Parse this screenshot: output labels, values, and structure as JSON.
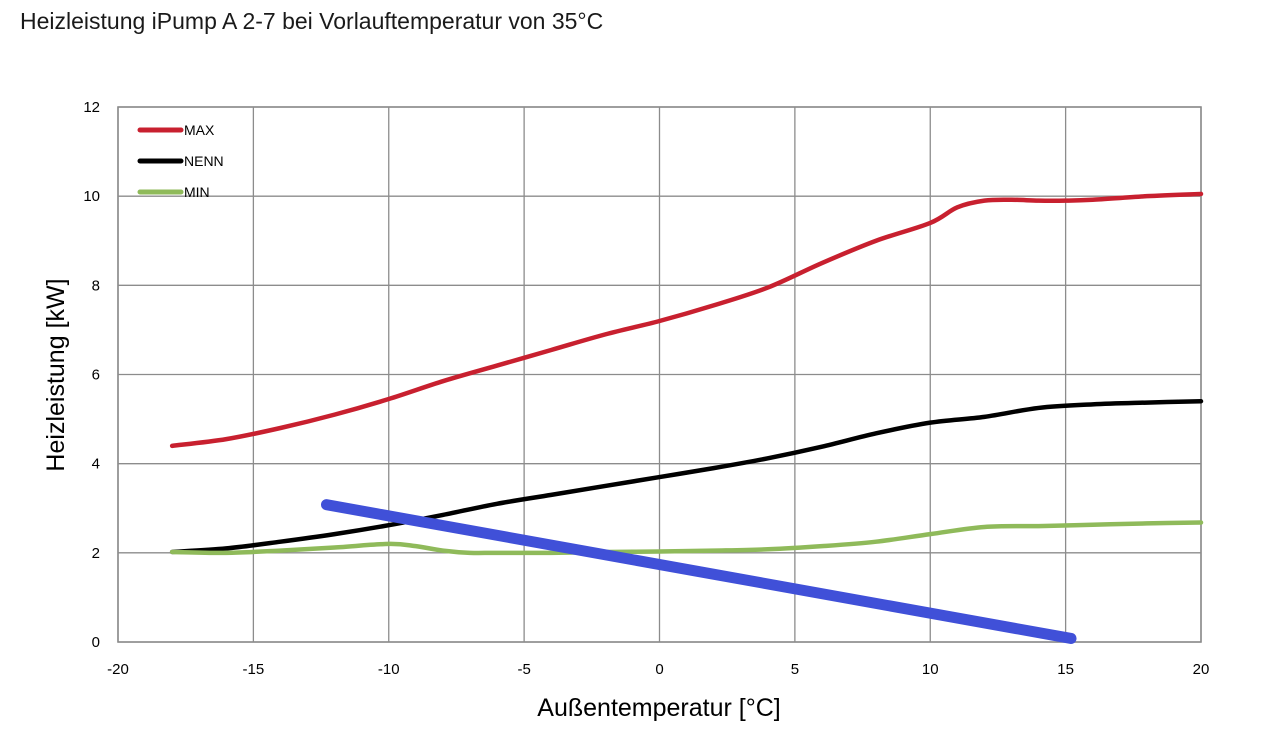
{
  "chart_data": {
    "type": "line",
    "title": "Heizleistung iPump A 2-7 bei Vorlauftemperatur von 35°C",
    "xlabel": "Außentemperatur [°C]",
    "ylabel": "Heizleistung [kW]",
    "xlim": [
      -20,
      20
    ],
    "ylim": [
      0,
      12
    ],
    "xticks": [
      -20,
      -15,
      -10,
      -5,
      0,
      5,
      10,
      15,
      20
    ],
    "yticks": [
      0,
      2,
      4,
      6,
      8,
      10,
      12
    ],
    "grid": true,
    "legend_position": "top-left",
    "series": [
      {
        "name": "MAX",
        "color": "#c8202f",
        "x": [
          -18,
          -16,
          -14,
          -12,
          -10,
          -8,
          -6,
          -4,
          -2,
          0,
          2,
          4,
          6,
          8,
          10,
          11,
          12,
          13,
          14,
          15,
          16,
          18,
          20
        ],
        "y": [
          4.4,
          4.55,
          4.8,
          5.1,
          5.45,
          5.85,
          6.2,
          6.55,
          6.9,
          7.2,
          7.55,
          7.95,
          8.5,
          9.0,
          9.4,
          9.75,
          9.9,
          9.92,
          9.9,
          9.9,
          9.92,
          10.0,
          10.05
        ]
      },
      {
        "name": "NENN",
        "color": "#000000",
        "x": [
          -18,
          -16,
          -14,
          -12,
          -10,
          -8,
          -6,
          -4,
          -2,
          0,
          2,
          4,
          6,
          8,
          10,
          12,
          14,
          16,
          18,
          20
        ],
        "y": [
          2.02,
          2.1,
          2.25,
          2.42,
          2.62,
          2.85,
          3.1,
          3.3,
          3.5,
          3.7,
          3.9,
          4.12,
          4.38,
          4.68,
          4.92,
          5.05,
          5.25,
          5.33,
          5.37,
          5.4
        ]
      },
      {
        "name": "MIN",
        "color": "#8fba5a",
        "x": [
          -18,
          -16,
          -14,
          -12,
          -10,
          -9,
          -8,
          -7,
          -6,
          -4,
          -2,
          0,
          2,
          4,
          6,
          8,
          10,
          12,
          14,
          16,
          18,
          20
        ],
        "y": [
          2.02,
          2.0,
          2.05,
          2.12,
          2.2,
          2.15,
          2.05,
          2.0,
          2.0,
          2.0,
          2.02,
          2.03,
          2.05,
          2.08,
          2.15,
          2.25,
          2.42,
          2.58,
          2.6,
          2.63,
          2.66,
          2.68
        ]
      },
      {
        "color": "#4050d8",
        "x": [
          -12.3,
          15.2
        ],
        "y": [
          3.08,
          0.08
        ]
      }
    ]
  }
}
